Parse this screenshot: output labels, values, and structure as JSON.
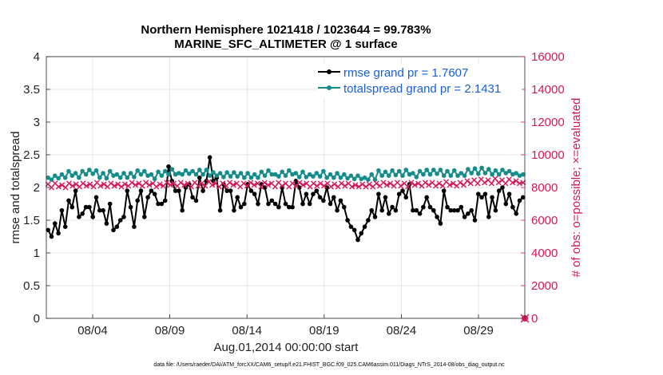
{
  "chart_data": {
    "type": "line",
    "title": "Northern Hemisphere 1021418 / 1023644 = 99.783%",
    "subtitle": "MARINE_SFC_ALTIMETER @ 1 surface",
    "xlabel": "Aug.01,2014 00:00:00 start",
    "ylabel": "rmse and totalspread",
    "y2label": "# of obs: o=possible; ×=evaluated",
    "x_ticks": [
      "08/04",
      "08/09",
      "08/14",
      "08/19",
      "08/24",
      "08/29"
    ],
    "x_tick_days": [
      4,
      9,
      14,
      19,
      24,
      29
    ],
    "xlim": [
      1,
      32
    ],
    "ylim": [
      0,
      4
    ],
    "y_ticks": [
      "0",
      "0.5",
      "1",
      "1.5",
      "2",
      "2.5",
      "3",
      "3.5",
      "4"
    ],
    "y2lim": [
      0,
      16000
    ],
    "y2_ticks": [
      "0",
      "2000",
      "4000",
      "6000",
      "8000",
      "10000",
      "12000",
      "14000",
      "16000"
    ],
    "legend": {
      "placement": "top-right",
      "entries": [
        "rmse grand pr = 1.7607",
        "totalspread grand pr = 2.1431"
      ]
    },
    "colors": {
      "rmse": "#000000",
      "totalspread": "#148c8c",
      "obs": "#d6175a"
    },
    "grid": true,
    "series": [
      {
        "name": "rmse",
        "axis": "left",
        "marker": "circle",
        "values": [
          1.35,
          1.25,
          1.45,
          1.3,
          1.65,
          1.4,
          1.8,
          1.7,
          1.95,
          1.55,
          1.6,
          1.7,
          1.7,
          1.55,
          1.85,
          1.65,
          1.65,
          1.45,
          1.75,
          1.35,
          1.4,
          1.5,
          1.55,
          1.95,
          1.7,
          1.4,
          1.8,
          1.95,
          1.55,
          1.85,
          1.95,
          1.9,
          1.75,
          1.75,
          1.8,
          2.32,
          2.1,
          1.95,
          1.95,
          1.65,
          2.0,
          2.05,
          1.85,
          1.8,
          2.15,
          1.95,
          2.1,
          2.46,
          2.1,
          2.15,
          1.65,
          2.05,
          1.95,
          1.95,
          1.65,
          1.85,
          1.7,
          1.75,
          2.05,
          1.95,
          1.9,
          1.75,
          2.05,
          2.0,
          1.75,
          1.8,
          1.75,
          1.7,
          2.0,
          1.75,
          1.7,
          1.7,
          2.1,
          2.0,
          1.75,
          1.9,
          1.75,
          1.9,
          1.95,
          1.85,
          1.8,
          2.0,
          1.75,
          1.85,
          1.65,
          1.8,
          1.7,
          1.5,
          1.4,
          1.35,
          1.2,
          1.3,
          1.4,
          1.5,
          1.65,
          1.55,
          1.9,
          1.65,
          1.85,
          1.6,
          1.7,
          1.65,
          1.9,
          1.95,
          1.85,
          2.05,
          1.65,
          1.65,
          1.6,
          1.7,
          1.85,
          1.7,
          1.65,
          1.55,
          1.45,
          1.95,
          1.7,
          1.65,
          1.65,
          1.65,
          1.7,
          1.55,
          1.6,
          1.65,
          1.5,
          1.9,
          1.85,
          1.9,
          1.55,
          1.85,
          1.65,
          1.95,
          2.0,
          1.75,
          1.9,
          1.7,
          1.6,
          1.8,
          1.85
        ]
      },
      {
        "name": "totalspread",
        "axis": "left",
        "marker": "circle",
        "values": [
          2.15,
          2.12,
          2.18,
          2.14,
          2.2,
          2.15,
          2.25,
          2.18,
          2.22,
          2.15,
          2.25,
          2.2,
          2.27,
          2.21,
          2.26,
          2.15,
          2.22,
          2.14,
          2.25,
          2.18,
          2.2,
          2.15,
          2.22,
          2.15,
          2.22,
          2.16,
          2.26,
          2.2,
          2.25,
          2.18,
          2.2,
          2.13,
          2.24,
          2.18,
          2.25,
          2.2,
          2.28,
          2.2,
          2.22,
          2.2,
          2.26,
          2.21,
          2.25,
          2.2,
          2.27,
          2.2,
          2.27,
          2.18,
          2.23,
          2.18,
          2.22,
          2.16,
          2.23,
          2.17,
          2.23,
          2.17,
          2.22,
          2.15,
          2.22,
          2.15,
          2.2,
          2.15,
          2.24,
          2.18,
          2.26,
          2.2,
          2.2,
          2.17,
          2.24,
          2.18,
          2.26,
          2.2,
          2.22,
          2.16,
          2.24,
          2.16,
          2.2,
          2.17,
          2.22,
          2.17,
          2.25,
          2.15,
          2.2,
          2.15,
          2.22,
          2.15,
          2.2,
          2.14,
          2.18,
          2.13,
          2.18,
          2.13,
          2.15,
          2.12,
          2.2,
          2.12,
          2.26,
          2.18,
          2.24,
          2.18,
          2.26,
          2.19,
          2.25,
          2.18,
          2.27,
          2.2,
          2.22,
          2.16,
          2.25,
          2.2,
          2.27,
          2.2,
          2.27,
          2.21,
          2.27,
          2.18,
          2.25,
          2.18,
          2.26,
          2.18,
          2.22,
          2.18,
          2.28,
          2.22,
          2.29,
          2.21,
          2.3,
          2.22,
          2.28,
          2.2,
          2.26,
          2.2,
          2.27,
          2.22,
          2.25,
          2.2,
          2.22,
          2.18,
          2.2
        ]
      },
      {
        "name": "obs",
        "axis": "right",
        "marker": "x",
        "values": [
          8200,
          8000,
          8250,
          8050,
          8150,
          8000,
          8250,
          8100,
          8200,
          8050,
          8250,
          8100,
          8200,
          8050,
          8300,
          8100,
          8200,
          8050,
          8250,
          8100,
          8200,
          8050,
          8200,
          8100,
          8300,
          8150,
          8250,
          8100,
          8300,
          8150,
          8250,
          8050,
          8200,
          8100,
          8300,
          8150,
          8250,
          8100,
          8300,
          8150,
          8250,
          8050,
          8300,
          8100,
          8250,
          8100,
          8350,
          8150,
          8250,
          8050,
          8250,
          8100,
          8300,
          8150,
          8250,
          8050,
          8250,
          8100,
          8300,
          8150,
          8250,
          8050,
          8300,
          8150,
          8250,
          8050,
          8300,
          8100,
          8250,
          8050,
          8250,
          8100,
          8300,
          8150,
          8250,
          8050,
          8250,
          8100,
          8250,
          8100,
          8250,
          8050,
          8200,
          8050,
          8250,
          8100,
          8250,
          8050,
          8150,
          8050,
          8200,
          8050,
          8200,
          8050,
          8250,
          8100,
          8300,
          8150,
          8250,
          8100,
          8300,
          8100,
          8250,
          8050,
          8300,
          8150,
          8250,
          8100,
          8300,
          8150,
          8300,
          8100,
          8250,
          8100,
          8350,
          8150,
          8250,
          8100,
          8300,
          8150,
          8400,
          8250,
          8450,
          8250,
          8500,
          8300,
          8450,
          8250,
          8550,
          8300,
          8450,
          8250,
          8500,
          8300,
          8400,
          8250,
          8300
        ]
      }
    ]
  },
  "footer": "data file: /Users/raeder/DAI/ATM_forcXX/CAM6_setup/f.e21.FHIST_BGC.f09_025.CAM6assim.011/Diags_NTrS_2014-08/obs_diag_output.nc"
}
